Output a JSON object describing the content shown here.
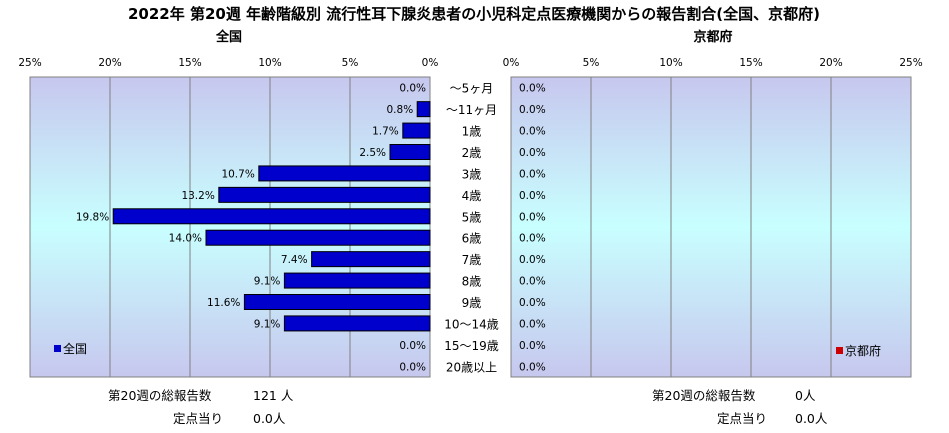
{
  "chart_data": {
    "type": "bar",
    "orientation": "horizontal",
    "title": "2022年 第20週 年齢階級別 流行性耳下腺炎患者の小児科定点医療機関からの報告割合(全国、京都府)",
    "categories": [
      "～5ヶ月",
      "～11ヶ月",
      "1歳",
      "2歳",
      "3歳",
      "4歳",
      "5歳",
      "6歳",
      "7歳",
      "8歳",
      "9歳",
      "10～14歳",
      "15～19歳",
      "20歳以上"
    ],
    "xlim": [
      0,
      25
    ],
    "xticks": [
      "0%",
      "5%",
      "10%",
      "15%",
      "20%",
      "25%"
    ],
    "xticks_left": [
      "25%",
      "20%",
      "15%",
      "10%",
      "5%",
      "0%"
    ],
    "grid": true,
    "panels": [
      {
        "subtitle": "全国",
        "direction": "left",
        "legend": "全国",
        "legend_position": "bottom-left",
        "color": "#0000cc",
        "values": [
          0.0,
          0.8,
          1.7,
          2.5,
          10.7,
          13.2,
          19.8,
          14.0,
          7.4,
          9.1,
          11.6,
          9.1,
          0.0,
          0.0
        ],
        "labels": [
          "0.0%",
          "0.8%",
          "1.7%",
          "2.5%",
          "10.7%",
          "13.2%",
          "19.8%",
          "14.0%",
          "7.4%",
          "9.1%",
          "11.6%",
          "9.1%",
          "0.0%",
          "0.0%"
        ]
      },
      {
        "subtitle": "京都府",
        "direction": "right",
        "legend": "京都府",
        "legend_position": "bottom-right",
        "color": "#cc0000",
        "values": [
          0,
          0,
          0,
          0,
          0,
          0,
          0,
          0,
          0,
          0,
          0,
          0,
          0,
          0
        ],
        "labels": [
          "0.0%",
          "0.0%",
          "0.0%",
          "0.0%",
          "0.0%",
          "0.0%",
          "0.0%",
          "0.0%",
          "0.0%",
          "0.0%",
          "0.0%",
          "0.0%",
          "0.0%",
          "0.0%"
        ]
      }
    ]
  },
  "footer": {
    "left": {
      "total_label": "第20週の総報告数",
      "total_value": "121 人",
      "per_label": "定点当り",
      "per_value": "0.0人"
    },
    "right": {
      "total_label": "第20週の総報告数",
      "total_value": "0人",
      "per_label": "定点当り",
      "per_value": "0.0人"
    }
  }
}
